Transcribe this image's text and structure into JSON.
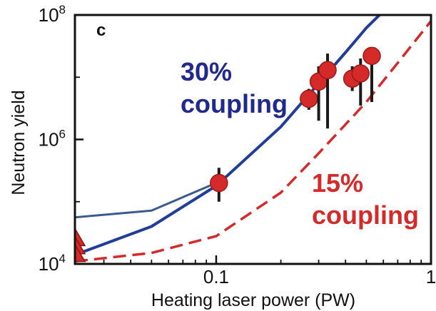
{
  "chart_data": {
    "type": "scatter",
    "panel_label": "c",
    "xlabel": "Heating laser power (PW)",
    "ylabel": "Neutron yield",
    "x_scale": "log",
    "y_scale": "log",
    "xlim": [
      0.022,
      1
    ],
    "ylim": [
      10000,
      100000000
    ],
    "x_ticks": [
      {
        "value": 0.1,
        "label": "0.1"
      },
      {
        "value": 1,
        "label": "1"
      }
    ],
    "y_ticks": [
      {
        "value": 10000,
        "base": "10",
        "exp": "4"
      },
      {
        "value": 1000000,
        "base": "10",
        "exp": "6"
      },
      {
        "value": 100000000,
        "base": "10",
        "exp": "8"
      }
    ],
    "grid": false,
    "annotations": [
      {
        "lines": [
          "30%",
          "coupling"
        ],
        "color": "#1f2a8c"
      },
      {
        "lines": [
          "15%",
          "coupling"
        ],
        "color": "#d42a2a"
      }
    ],
    "series": [
      {
        "type": "line",
        "style": "solid",
        "color": "#1f3d99",
        "x": [
          0.022,
          0.05,
          0.1,
          0.2,
          0.3,
          0.4,
          0.5,
          0.6
        ],
        "y": [
          14000,
          40000,
          180000,
          1600000,
          8000000,
          25000000,
          62000000,
          115000000
        ]
      },
      {
        "type": "line",
        "style": "dashed",
        "color": "#d42a2a",
        "x": [
          0.022,
          0.05,
          0.1,
          0.2,
          0.3,
          0.5,
          0.7,
          1.0
        ],
        "y": [
          11000,
          15000,
          28000,
          140000,
          600000,
          4000000,
          17000000,
          80000000
        ]
      },
      {
        "type": "line",
        "style": "solid",
        "color": "#3b5a90",
        "x": [
          0.022,
          0.05,
          0.1
        ],
        "y": [
          56000,
          72000,
          200000
        ]
      },
      {
        "type": "scatter",
        "marker": "circle",
        "color": "#d42a2a",
        "points": [
          {
            "x": 0.103,
            "y": 200000,
            "y_low": 100000,
            "y_high": 350000
          },
          {
            "x": 0.27,
            "y": 4500000,
            "y_low": 3000000,
            "y_high": 6500000
          },
          {
            "x": 0.3,
            "y": 8500000,
            "y_low": 2000000,
            "y_high": 15000000
          },
          {
            "x": 0.33,
            "y": 13000000,
            "y_low": 1500000,
            "y_high": 24000000
          },
          {
            "x": 0.43,
            "y": 9500000,
            "y_low": 6000000,
            "y_high": 15000000
          },
          {
            "x": 0.47,
            "y": 11500000,
            "y_low": 3500000,
            "y_high": 20000000
          },
          {
            "x": 0.53,
            "y": 22000000,
            "y_low": 4000000,
            "y_high": 30000000
          }
        ]
      },
      {
        "type": "scatter",
        "marker": "triangle-up",
        "color": "#d42a2a",
        "points": [
          {
            "x": 0.022,
            "y": 27000
          },
          {
            "x": 0.022,
            "y": 20000
          },
          {
            "x": 0.022,
            "y": 15000
          }
        ]
      }
    ]
  }
}
